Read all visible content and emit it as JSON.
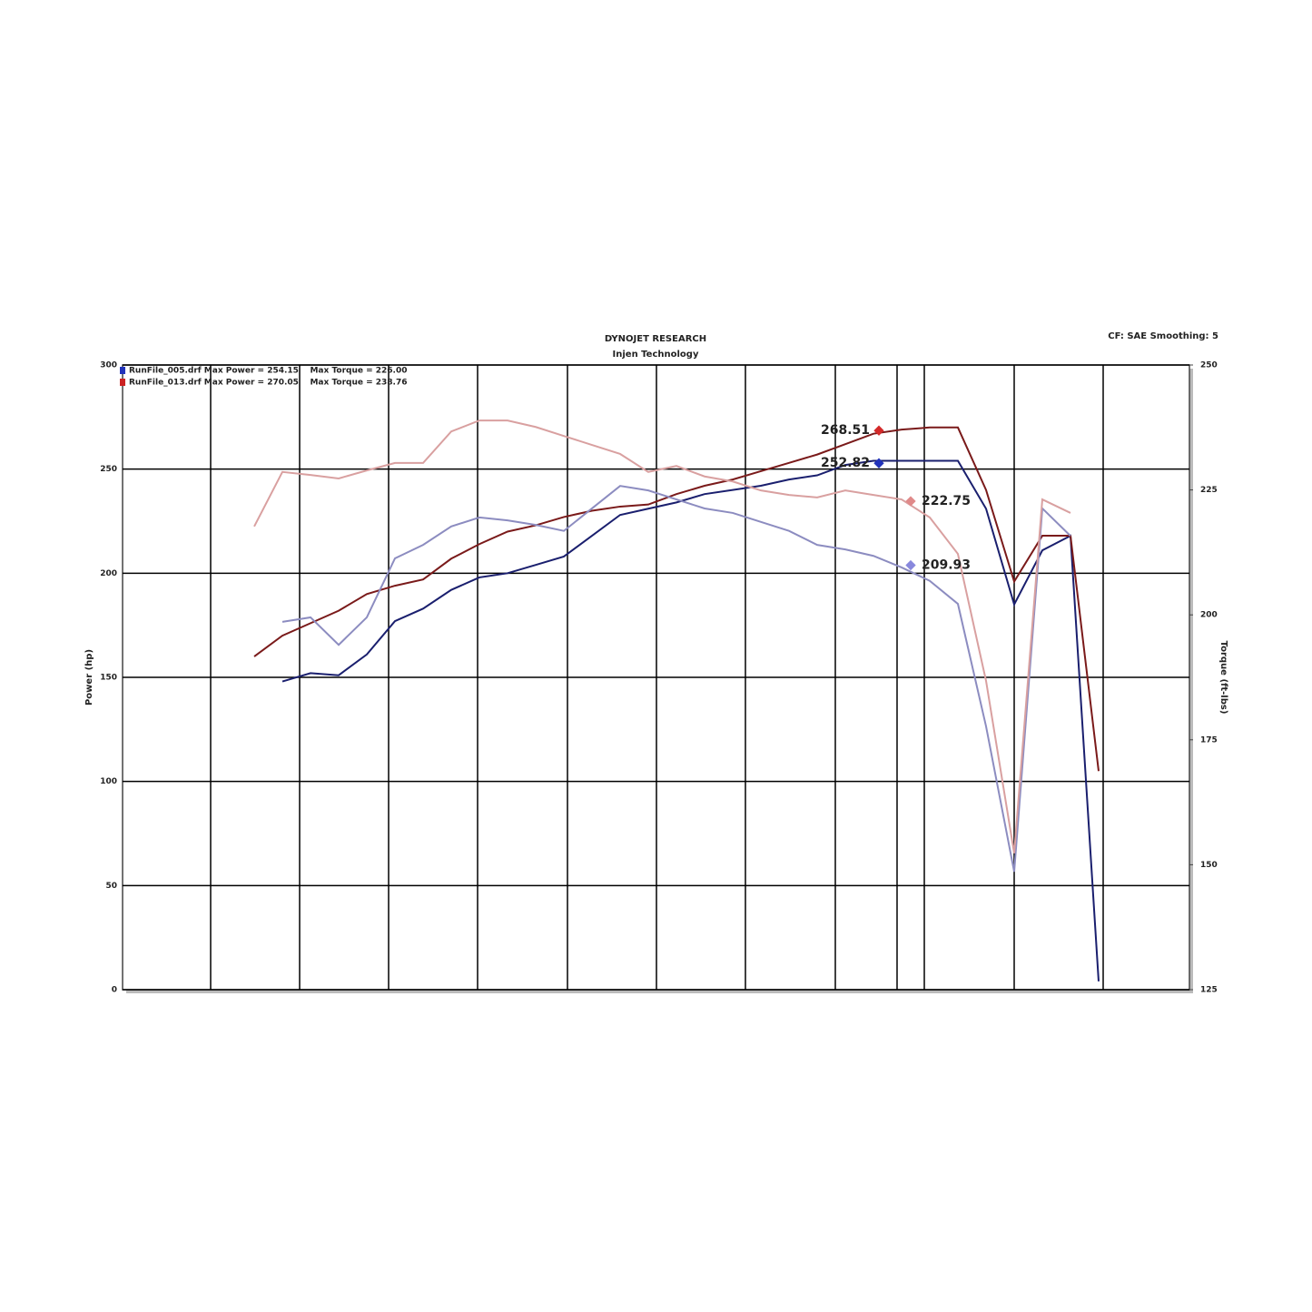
{
  "chart_data": {
    "type": "line",
    "title": "DYNOJET RESEARCH",
    "subtitle": "Injen Technology",
    "settings_text": "CF: SAE  Smoothing: 5",
    "ylabel": "Power (hp)",
    "y2label": "Torque (ft-lbs)",
    "legend": [
      {
        "text": "RunFile_005.drf Max Power = 254.15    Max Torque = 226.00",
        "color": "#2233bb"
      },
      {
        "text": "RunFile_013.drf Max Power = 270.05    Max Torque = 238.76",
        "color": "#cc2222"
      }
    ],
    "ylim": [
      0,
      300
    ],
    "yticks": [
      0,
      50,
      100,
      150,
      200,
      250,
      300
    ],
    "y2lim": [
      125,
      250
    ],
    "y2ticks": [
      125,
      150,
      175,
      200,
      225,
      250
    ],
    "grid": true,
    "categories": [
      null,
      null,
      null,
      null,
      null,
      null,
      null,
      null,
      null,
      null,
      null,
      null,
      null,
      null,
      null,
      null,
      null,
      null,
      null,
      null,
      null,
      null,
      null,
      null,
      null,
      null,
      null,
      null,
      null,
      null,
      null
    ],
    "series": [
      {
        "color": "#1a1f6e",
        "values": [
          null,
          148,
          152,
          151,
          161,
          177,
          183,
          192,
          198,
          200,
          204,
          208,
          218,
          228,
          231,
          234,
          238,
          240,
          242,
          245,
          247,
          252,
          254,
          254,
          254,
          254,
          231,
          185,
          211,
          218,
          4
        ]
      },
      {
        "color": "#7a1a1a",
        "values": [
          160,
          170,
          176,
          182,
          190,
          194,
          197,
          207,
          214,
          220,
          223,
          227,
          230,
          232,
          233,
          238,
          242,
          245,
          249,
          253,
          257,
          262,
          267,
          269,
          270,
          270,
          240,
          196,
          218,
          218,
          105
        ]
      },
      {
        "color": "#8c8cc0",
        "axis": "y2",
        "values": [
          null,
          198.6,
          199.5,
          194,
          199.5,
          211.3,
          214,
          217.7,
          219.5,
          218.9,
          218,
          216.8,
          221.3,
          225.8,
          224.9,
          223.1,
          221.3,
          220.4,
          218.6,
          216.8,
          214,
          213.1,
          211.8,
          209.5,
          206.8,
          202.2,
          177.7,
          148.6,
          221.3,
          215.8,
          null
        ]
      },
      {
        "color": "#d9a0a0",
        "axis": "y2",
        "values": [
          217.7,
          228.6,
          228,
          227.3,
          228.9,
          230.4,
          230.4,
          236.7,
          238.9,
          238.9,
          237.6,
          235.8,
          234,
          232.2,
          228.6,
          229.8,
          227.7,
          226.7,
          224.9,
          224,
          223.5,
          224.9,
          224,
          223.1,
          219.5,
          212.2,
          186.8,
          152.3,
          223.1,
          220.4,
          null
        ]
      }
    ],
    "annotations": [
      {
        "value": 268.51,
        "color": "#d42a2a"
      },
      {
        "value": 252.82,
        "color": "#2233bb"
      },
      {
        "value": 222.75,
        "axis": "y2",
        "color": "#e08a8a"
      },
      {
        "value": 209.93,
        "axis": "y2",
        "color": "#8888dd"
      }
    ]
  }
}
